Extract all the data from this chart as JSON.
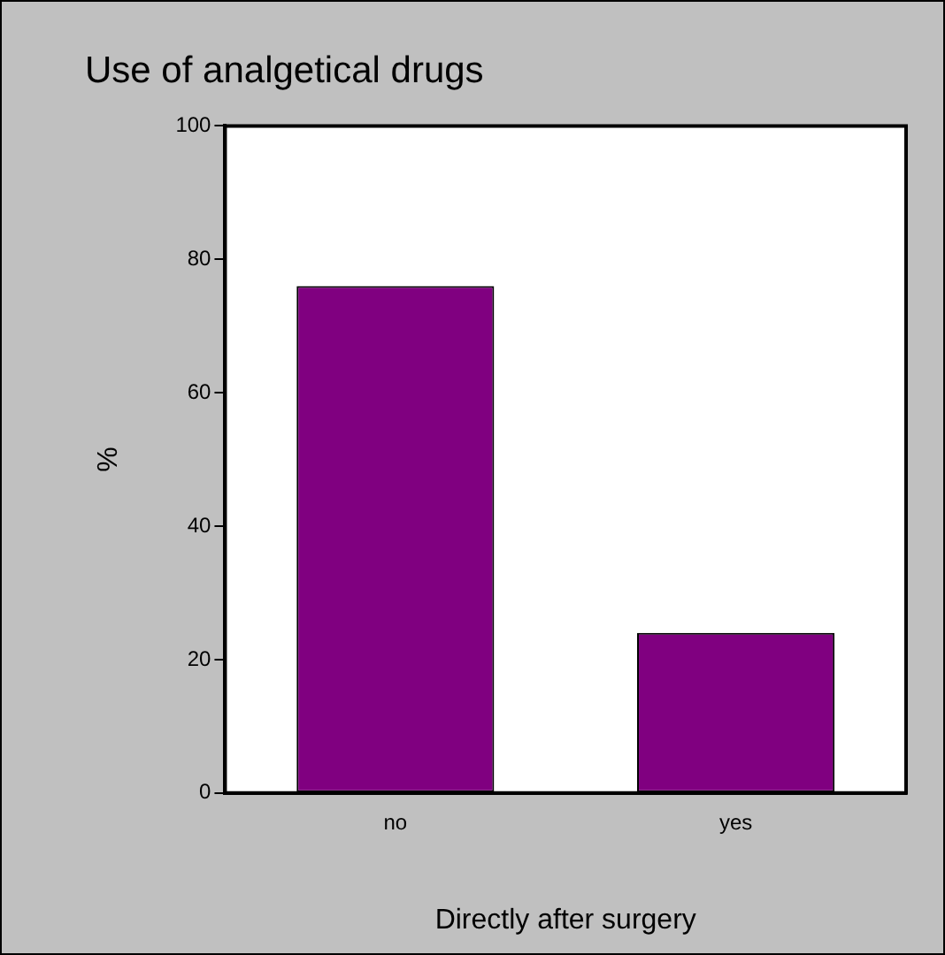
{
  "chart_data": {
    "type": "bar",
    "title": "Use of analgetical drugs",
    "xlabel": "Directly after surgery",
    "ylabel": "%",
    "categories": [
      "no",
      "yes"
    ],
    "values": [
      76,
      24
    ],
    "color": "#800080",
    "ylim": [
      0,
      100
    ],
    "yticks": [
      0,
      20,
      40,
      60,
      80,
      100
    ],
    "grid": false,
    "legend": false
  }
}
